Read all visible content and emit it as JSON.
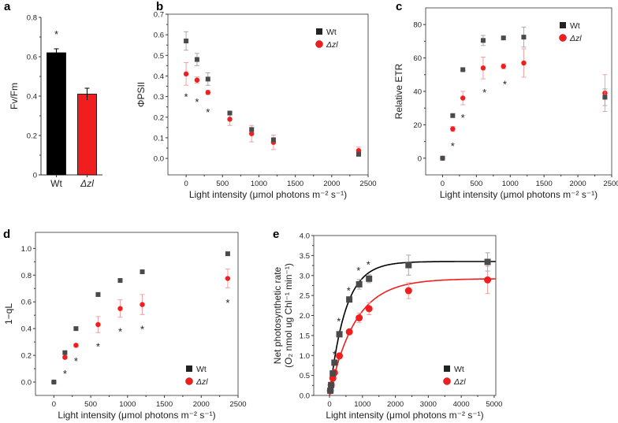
{
  "colors": {
    "wt": "#4a4a4a",
    "wt_bar": "#000000",
    "dzl": "#f01e1e",
    "wt_err": "#aaaaaa",
    "dzl_err": "#f5a0a0"
  },
  "legend": {
    "wt": "Wt",
    "dzl": "Δzl"
  },
  "chart_data": [
    {
      "id": "a",
      "panel_label": "a",
      "type": "bar",
      "categories": [
        "Wt",
        "Δzl"
      ],
      "values": [
        0.62,
        0.41
      ],
      "errors": [
        0.02,
        0.03
      ],
      "ylabel": "Fv/Fm",
      "xlabel": "",
      "ylim": [
        0,
        0.8
      ],
      "yticks": [
        0,
        0.2,
        0.4,
        0.6,
        0.8
      ],
      "annotations": [
        {
          "text": "*",
          "category": 0,
          "y": 0.72
        }
      ]
    },
    {
      "id": "b",
      "panel_label": "b",
      "type": "scatter",
      "xlabel": "Light intensity (μmol photons m⁻² s⁻¹)",
      "ylabel": "ΦPSII",
      "xlim": [
        -250,
        2500
      ],
      "ylim": [
        -0.08,
        0.7
      ],
      "xticks": [
        0,
        500,
        1000,
        1500,
        2000,
        2500
      ],
      "yticks": [
        0.0,
        0.1,
        0.2,
        0.3,
        0.4,
        0.5,
        0.6,
        0.7
      ],
      "ydec": 1,
      "legend_position": "top-right",
      "series": [
        {
          "name": "Wt",
          "x": [
            0,
            150,
            300,
            600,
            900,
            1200,
            2370
          ],
          "y": [
            0.57,
            0.48,
            0.385,
            0.22,
            0.14,
            0.09,
            0.02
          ],
          "err": [
            0.045,
            0.03,
            0.03,
            0.005,
            0.01,
            0.01,
            0.005
          ]
        },
        {
          "name": "Δzl",
          "x": [
            0,
            150,
            300,
            600,
            900,
            1200,
            2370
          ],
          "y": [
            0.41,
            0.38,
            0.32,
            0.19,
            0.12,
            0.078,
            0.038
          ],
          "err": [
            0.055,
            0.015,
            0.01,
            0.03,
            0.04,
            0.035,
            0.017
          ]
        }
      ],
      "annotations": [
        {
          "text": "*",
          "x": 0,
          "y": 0.305
        },
        {
          "text": "*",
          "x": 150,
          "y": 0.28
        },
        {
          "text": "*",
          "x": 300,
          "y": 0.23
        }
      ]
    },
    {
      "id": "c",
      "panel_label": "c",
      "type": "scatter",
      "xlabel": "Light intensity (μmol photons m⁻² s⁻¹)",
      "ylabel": "Relative ETR",
      "xlim": [
        -250,
        2500
      ],
      "ylim": [
        -10,
        90
      ],
      "xticks": [
        0,
        500,
        1000,
        1500,
        2000,
        2500
      ],
      "yticks": [
        0,
        20,
        40,
        60,
        80
      ],
      "ydec": 0,
      "legend_position": "top-right",
      "series": [
        {
          "name": "Wt",
          "x": [
            0,
            150,
            300,
            600,
            900,
            1200,
            2400
          ],
          "y": [
            0,
            25.5,
            53,
            70.5,
            72,
            72.5,
            36.5
          ],
          "err": [
            0,
            1,
            0.5,
            3,
            0.5,
            6,
            5
          ]
        },
        {
          "name": "Δzl",
          "x": [
            0,
            150,
            300,
            600,
            900,
            1200,
            2400
          ],
          "y": [
            0,
            17.5,
            36,
            54,
            55,
            57,
            39
          ],
          "err": [
            0,
            1.5,
            4,
            6.5,
            1.5,
            8.5,
            11
          ]
        }
      ],
      "annotations": [
        {
          "text": "*",
          "x": 150,
          "y": 8
        },
        {
          "text": "*",
          "x": 300,
          "y": 25
        },
        {
          "text": "*",
          "x": 620,
          "y": 40
        },
        {
          "text": "*",
          "x": 920,
          "y": 45
        }
      ]
    },
    {
      "id": "d",
      "panel_label": "d",
      "type": "scatter",
      "xlabel": "Light intensity (μmol photons m⁻² s⁻¹)",
      "ylabel": "1−qL",
      "xlim": [
        -250,
        2500
      ],
      "ylim": [
        -0.1,
        1.12
      ],
      "xticks": [
        0,
        500,
        1000,
        1500,
        2000,
        2500
      ],
      "yticks": [
        0.0,
        0.2,
        0.4,
        0.6,
        0.8,
        1.0
      ],
      "ydec": 1,
      "legend_position": "bottom-right",
      "series": [
        {
          "name": "Wt",
          "x": [
            0,
            150,
            300,
            600,
            900,
            1200,
            2360
          ],
          "y": [
            0,
            0.22,
            0.4,
            0.655,
            0.76,
            0.825,
            0.96
          ],
          "err": [
            0,
            0.01,
            0.01,
            0.015,
            0.01,
            0.01,
            0.01
          ]
        },
        {
          "name": "Δzl",
          "x": [
            0,
            150,
            300,
            600,
            900,
            1200,
            2360
          ],
          "y": [
            0,
            0.185,
            0.275,
            0.43,
            0.55,
            0.58,
            0.775
          ],
          "err": [
            0,
            0.01,
            0.01,
            0.06,
            0.065,
            0.075,
            0.07
          ]
        }
      ],
      "annotations": [
        {
          "text": "*",
          "x": 150,
          "y": 0.07
        },
        {
          "text": "*",
          "x": 300,
          "y": 0.165
        },
        {
          "text": "*",
          "x": 600,
          "y": 0.275
        },
        {
          "text": "*",
          "x": 900,
          "y": 0.385
        },
        {
          "text": "*",
          "x": 1200,
          "y": 0.405
        },
        {
          "text": "*",
          "x": 2360,
          "y": 0.6
        }
      ]
    },
    {
      "id": "e",
      "panel_label": "e",
      "type": "scatter",
      "xlabel": "Light intensity (μmol photons m⁻² s⁻¹)",
      "ylabel": [
        "Net photosynthetic rate",
        "(O₂ nmol ug Chl⁻¹ min⁻¹)"
      ],
      "xlim": [
        -480,
        5050
      ],
      "ylim": [
        0,
        4
      ],
      "xticks": [
        0,
        1000,
        2000,
        3000,
        4000,
        5000
      ],
      "yticks": [
        0.0,
        0.5,
        1.0,
        1.5,
        2.0,
        2.5,
        3.0,
        3.5,
        4.0
      ],
      "ydec": 1,
      "legend_position": "bottom-right",
      "series": [
        {
          "name": "Wt",
          "x": [
            25,
            50,
            100,
            150,
            300,
            600,
            900,
            1200,
            2400,
            4800
          ],
          "y": [
            0.12,
            0.26,
            0.55,
            0.82,
            1.53,
            2.4,
            2.78,
            2.92,
            3.26,
            3.34
          ],
          "err": [
            0,
            0,
            0.02,
            0.03,
            0.05,
            0.06,
            0.12,
            0.1,
            0.25,
            0.23
          ],
          "fit": {
            "Pmax": 3.35,
            "Ik": 480
          }
        },
        {
          "name": "Δzl",
          "x": [
            25,
            50,
            100,
            150,
            300,
            600,
            900,
            1200,
            2400,
            4800
          ],
          "y": [
            0.12,
            0.26,
            0.43,
            0.57,
            0.99,
            1.59,
            1.94,
            2.17,
            2.62,
            2.89
          ],
          "err": [
            0,
            0,
            0.02,
            0.02,
            0.03,
            0.04,
            0.12,
            0.15,
            0.2,
            0.34
          ],
          "fit": {
            "Pmax": 2.92,
            "Ik": 780
          }
        }
      ],
      "annotations": [
        {
          "text": "*",
          "x": 150,
          "y": 1.05
        },
        {
          "text": "*",
          "x": 280,
          "y": 1.88
        },
        {
          "text": "*",
          "x": 580,
          "y": 2.65
        },
        {
          "text": "*",
          "x": 880,
          "y": 3.15
        },
        {
          "text": "*",
          "x": 1180,
          "y": 3.3
        }
      ]
    }
  ]
}
